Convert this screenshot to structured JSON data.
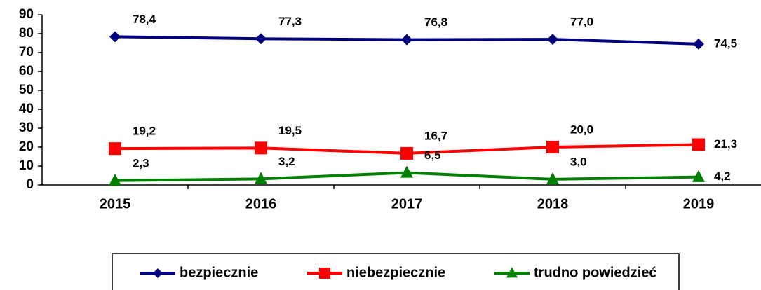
{
  "chart_data": {
    "type": "line",
    "categories": [
      "2015",
      "2016",
      "2017",
      "2018",
      "2019"
    ],
    "series": [
      {
        "name": "bezpiecznie",
        "color": "#000080",
        "marker": "diamond",
        "values": [
          78.4,
          77.3,
          76.8,
          77.0,
          74.5
        ],
        "value_labels": [
          "78,4",
          "77,3",
          "76,8",
          "77,0",
          "74,5"
        ]
      },
      {
        "name": "niebezpiecznie",
        "color": "#ff0000",
        "marker": "square",
        "values": [
          19.2,
          19.5,
          16.7,
          20.0,
          21.3
        ],
        "value_labels": [
          "19,2",
          "19,5",
          "16,7",
          "20,0",
          "21,3"
        ]
      },
      {
        "name": "trudno powiedzieć",
        "color": "#008000",
        "marker": "triangle",
        "values": [
          2.3,
          3.2,
          6.5,
          3.0,
          4.2
        ],
        "value_labels": [
          "2,3",
          "3,2",
          "6,5",
          "3,0",
          "4,2"
        ]
      }
    ],
    "ylim": [
      0,
      90
    ],
    "yticks": [
      0,
      10,
      20,
      30,
      40,
      50,
      60,
      70,
      80,
      90
    ],
    "grid": false,
    "legend": "bottom"
  }
}
